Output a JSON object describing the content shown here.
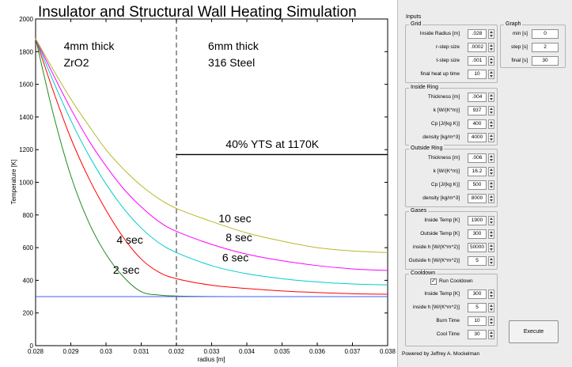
{
  "figure_title": "Insulator and Structural Wall Heating Simulation",
  "chart_data": {
    "type": "line",
    "title": "Insulator and Structural Wall Heating Simulation",
    "xlabel": "radius [m]",
    "ylabel": "Temperature [K]",
    "xlim": [
      0.028,
      0.038
    ],
    "ylim": [
      0,
      2000
    ],
    "xticks": [
      "0.028",
      "0.029",
      "0.03",
      "0.031",
      "0.032",
      "0.033",
      "0.034",
      "0.035",
      "0.036",
      "0.037",
      "0.038"
    ],
    "yticks": [
      "0",
      "200",
      "400",
      "600",
      "800",
      "1000",
      "1200",
      "1400",
      "1600",
      "1800",
      "2000"
    ],
    "grid": false,
    "x": [
      0.028,
      0.0285,
      0.029,
      0.0295,
      0.03,
      0.0305,
      0.031,
      0.0315,
      0.032,
      0.033,
      0.034,
      0.035,
      0.036,
      0.037,
      0.038
    ],
    "series": [
      {
        "color": "#228b22",
        "values": [
          1880,
          1420,
          1040,
          760,
          560,
          420,
          330,
          310,
          304,
          301,
          300,
          300,
          300,
          300,
          300
        ]
      },
      {
        "color": "#ff0000",
        "values": [
          1880,
          1560,
          1270,
          1030,
          830,
          660,
          530,
          450,
          410,
          370,
          350,
          335,
          325,
          318,
          315
        ]
      },
      {
        "color": "#00cccc",
        "values": [
          1880,
          1620,
          1380,
          1170,
          990,
          840,
          720,
          630,
          570,
          490,
          440,
          410,
          390,
          378,
          372
        ]
      },
      {
        "color": "#ff00ff",
        "values": [
          1880,
          1660,
          1450,
          1260,
          1100,
          960,
          850,
          760,
          700,
          620,
          560,
          520,
          490,
          470,
          460
        ]
      },
      {
        "color": "#b8b82a",
        "values": [
          1880,
          1690,
          1510,
          1350,
          1200,
          1080,
          980,
          900,
          840,
          760,
          690,
          640,
          600,
          580,
          570
        ]
      },
      {
        "color": "#3f5fff",
        "values": [
          300,
          300,
          300,
          300,
          300,
          300,
          300,
          300,
          300,
          300,
          300,
          300,
          300,
          300,
          300
        ]
      }
    ],
    "reference_lines": [
      {
        "orientation": "vertical",
        "x": 0.032,
        "style": "dashed",
        "color": "#555555"
      },
      {
        "orientation": "horizontal",
        "y": 1170,
        "x_from": 0.032,
        "x_to": 0.038,
        "color": "#000000"
      }
    ],
    "annotations": [
      {
        "text": "4mm thick",
        "x": 0.0288,
        "y": 1810
      },
      {
        "text": "ZrO2",
        "x": 0.0288,
        "y": 1710
      },
      {
        "text": "6mm thick",
        "x": 0.0329,
        "y": 1810
      },
      {
        "text": "316 Steel",
        "x": 0.0329,
        "y": 1710
      },
      {
        "text": "40% YTS at 1170K",
        "x": 0.0334,
        "y": 1210
      },
      {
        "text": "10 sec",
        "x": 0.0332,
        "y": 755
      },
      {
        "text": "8 sec",
        "x": 0.0334,
        "y": 640
      },
      {
        "text": "6 sec",
        "x": 0.0333,
        "y": 515
      },
      {
        "text": "4 sec",
        "x": 0.0303,
        "y": 625
      },
      {
        "text": "2 sec",
        "x": 0.0302,
        "y": 440
      }
    ]
  },
  "panel": {
    "inputs_title": "Inputs",
    "grid": {
      "title": "Grid",
      "rows": [
        {
          "label": "Inside Radius [m]",
          "value": ".028"
        },
        {
          "label": "r-step size",
          "value": ".0002"
        },
        {
          "label": "t-step size",
          "value": ".001"
        },
        {
          "label": "final heat up time",
          "value": "10"
        }
      ]
    },
    "graph": {
      "title": "Graph",
      "rows": [
        {
          "label": "min [s]",
          "value": "0"
        },
        {
          "label": "step [s]",
          "value": "2"
        },
        {
          "label": "final [s]",
          "value": "30"
        }
      ]
    },
    "inside_ring": {
      "title": "Inside Ring",
      "rows": [
        {
          "label": "Thickness [m]",
          "value": ".004"
        },
        {
          "label": "k [W/(K*m)]",
          "value": "937"
        },
        {
          "label": "Cp [J/(kg K)]",
          "value": "400"
        },
        {
          "label": "density [kg/m^3]",
          "value": "4000"
        }
      ]
    },
    "outside_ring": {
      "title": "Outside Ring",
      "rows": [
        {
          "label": "Thickness [m]",
          "value": ".006"
        },
        {
          "label": "k [W/(K*m)]",
          "value": "16.2"
        },
        {
          "label": "Cp [J/(kg K)]",
          "value": "500"
        },
        {
          "label": "density [kg/m^3]",
          "value": "8000"
        }
      ]
    },
    "gases": {
      "title": "Gases",
      "rows": [
        {
          "label": "Inside Temp [K]",
          "value": "1900"
        },
        {
          "label": "Outside Temp [K]",
          "value": "300"
        },
        {
          "label": "inside h [W/(K*m^2)]",
          "value": "50000"
        },
        {
          "label": "Outside h [W/(K*m^2)]",
          "value": "5"
        }
      ]
    },
    "cooldown": {
      "title": "Cooldown",
      "checkbox_label": "Run Cooldown",
      "checked": true,
      "rows": [
        {
          "label": "Inside Temp [K]",
          "value": "300"
        },
        {
          "label": "inside h [W/(K*m^2)]",
          "value": "5"
        },
        {
          "label": "Burn Time",
          "value": "10"
        },
        {
          "label": "Cool Time",
          "value": "30"
        }
      ]
    },
    "execute_label": "Execute",
    "credit": "Powered by Jeffrey A. Mockelman"
  }
}
